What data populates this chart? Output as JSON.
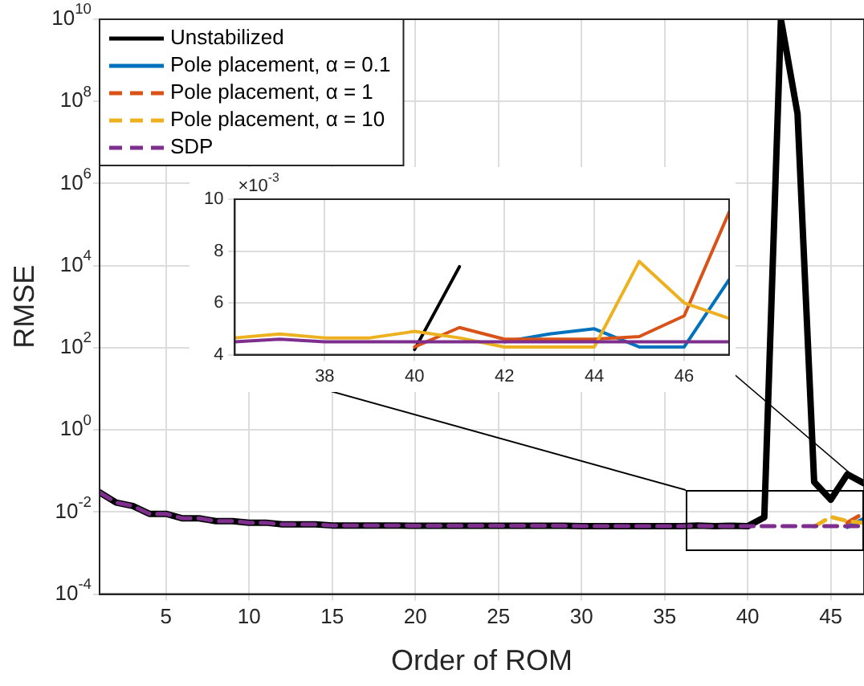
{
  "chart_data": [
    {
      "type": "line",
      "xlabel": "Order of ROM",
      "ylabel": "RMSE",
      "log": "y",
      "grid": true,
      "legend": "top left",
      "x": [
        1,
        2,
        3,
        4,
        5,
        6,
        7,
        8,
        9,
        10,
        11,
        12,
        13,
        14,
        15,
        16,
        17,
        18,
        19,
        20,
        21,
        22,
        23,
        24,
        25,
        26,
        27,
        28,
        29,
        30,
        31,
        32,
        33,
        34,
        35,
        36,
        37,
        38,
        39,
        40,
        41,
        42,
        43,
        44,
        45,
        46,
        47
      ],
      "xlim": [
        1,
        47
      ],
      "xticks": [
        5,
        10,
        15,
        20,
        25,
        30,
        35,
        40,
        45
      ],
      "ylim": [
        0.0001,
        10000000000
      ],
      "yticks": [
        {
          "value": 0.0001,
          "label": "10$^{-4}$"
        },
        {
          "value": 0.01,
          "label": "10$^{-2}$"
        },
        {
          "value": 1,
          "label": "10$^{0}$"
        },
        {
          "value": 100,
          "label": "10$^{2}$"
        },
        {
          "value": 10000,
          "label": "10$^{4}$"
        },
        {
          "value": 1000000,
          "label": "10$^{6}$"
        },
        {
          "value": 100000000,
          "label": "10$^{8}$"
        },
        {
          "value": 10000000000,
          "label": "10$^{10}$"
        }
      ],
      "series": [
        {
          "name": "Unstabilized",
          "color": "#000000",
          "line_style": "solid",
          "values": [
            0.03,
            0.017,
            0.014,
            0.009,
            0.009,
            0.007,
            0.007,
            0.006,
            0.006,
            0.0055,
            0.0055,
            0.005,
            0.005,
            0.005,
            0.0047,
            0.0047,
            0.0047,
            0.0047,
            0.0047,
            0.0046,
            0.0046,
            0.0046,
            0.0046,
            0.0046,
            0.0046,
            0.0046,
            0.0046,
            0.0046,
            0.0046,
            0.0045,
            0.0045,
            0.0045,
            0.0045,
            0.0045,
            0.0045,
            0.0045,
            0.0047,
            0.0045,
            0.0046,
            0.0045,
            0.0074,
            10000000000,
            50000000,
            0.054,
            0.02,
            0.083,
            0.05
          ]
        },
        {
          "name": "Pole placement, α = 0.1",
          "color": "#0072bd",
          "line_style": "solid",
          "values": [
            null,
            null,
            null,
            null,
            null,
            null,
            null,
            null,
            null,
            null,
            null,
            null,
            null,
            null,
            null,
            null,
            null,
            null,
            null,
            null,
            null,
            null,
            null,
            null,
            null,
            null,
            null,
            null,
            null,
            null,
            null,
            null,
            null,
            null,
            null,
            null,
            null,
            null,
            null,
            null,
            null,
            null,
            null,
            null,
            null,
            0.0043,
            0.0069
          ]
        },
        {
          "name": "Pole placement, α = 1",
          "color": "#d95319",
          "line_style": "dashed",
          "values": [
            null,
            null,
            null,
            null,
            null,
            null,
            null,
            null,
            null,
            null,
            null,
            null,
            null,
            null,
            null,
            null,
            null,
            null,
            null,
            null,
            null,
            null,
            null,
            null,
            null,
            null,
            null,
            null,
            null,
            null,
            null,
            null,
            null,
            null,
            null,
            null,
            null,
            null,
            null,
            null,
            null,
            null,
            null,
            null,
            null,
            0.0055,
            0.0095
          ]
        },
        {
          "name": "Pole placement, α = 10",
          "color": "#edb120",
          "line_style": "dashed",
          "values": [
            null,
            null,
            null,
            null,
            null,
            null,
            null,
            null,
            null,
            null,
            null,
            null,
            null,
            null,
            null,
            null,
            null,
            null,
            null,
            null,
            null,
            null,
            null,
            null,
            null,
            null,
            null,
            null,
            null,
            null,
            null,
            null,
            null,
            null,
            null,
            null,
            null,
            null,
            null,
            null,
            null,
            null,
            null,
            0.0044,
            0.0076,
            0.006,
            0.0054
          ]
        },
        {
          "name": "SDP",
          "color": "#7e2f8e",
          "line_style": "dashed",
          "values": [
            0.03,
            0.017,
            0.014,
            0.009,
            0.009,
            0.007,
            0.007,
            0.006,
            0.006,
            0.0055,
            0.0055,
            0.005,
            0.005,
            0.005,
            0.0047,
            0.0047,
            0.0047,
            0.0047,
            0.0047,
            0.0046,
            0.0046,
            0.0046,
            0.0046,
            0.0046,
            0.0046,
            0.0046,
            0.0046,
            0.0046,
            0.0046,
            0.0045,
            0.0045,
            0.0045,
            0.0045,
            0.0045,
            0.0045,
            0.0045,
            0.0046,
            0.0045,
            0.0045,
            0.0045,
            0.0045,
            0.0045,
            0.0045,
            0.0045,
            0.0045,
            0.0045,
            0.0045
          ]
        }
      ]
    },
    {
      "type": "line",
      "grid": true,
      "annotations": [
        "×10$^{-3}$"
      ],
      "x": [
        36,
        37,
        38,
        39,
        40,
        41,
        42,
        43,
        44,
        45,
        46,
        47
      ],
      "xlim": [
        36,
        47
      ],
      "xticks": [
        38,
        40,
        42,
        44,
        46
      ],
      "ylim": [
        4,
        10
      ],
      "yticks": [
        4,
        6,
        8,
        10
      ],
      "series": [
        {
          "color": "#000000",
          "values": [
            null,
            null,
            null,
            null,
            4.2,
            7.4,
            null,
            null,
            null,
            null,
            null,
            null
          ]
        },
        {
          "color": "#0072bd",
          "values": [
            null,
            null,
            null,
            null,
            null,
            null,
            4.5,
            4.8,
            5.0,
            4.3,
            4.3,
            6.9
          ]
        },
        {
          "color": "#d95319",
          "values": [
            null,
            null,
            null,
            null,
            4.3,
            5.05,
            4.6,
            4.6,
            4.6,
            4.7,
            5.5,
            9.5
          ]
        },
        {
          "color": "#edb120",
          "values": [
            4.65,
            4.8,
            4.65,
            4.65,
            4.9,
            4.65,
            4.3,
            4.3,
            4.3,
            7.6,
            6.0,
            5.4
          ]
        },
        {
          "color": "#7e2f8e",
          "values": [
            4.5,
            4.6,
            4.5,
            4.5,
            4.5,
            4.5,
            4.5,
            4.5,
            4.5,
            4.5,
            4.5,
            4.5
          ]
        }
      ]
    }
  ]
}
